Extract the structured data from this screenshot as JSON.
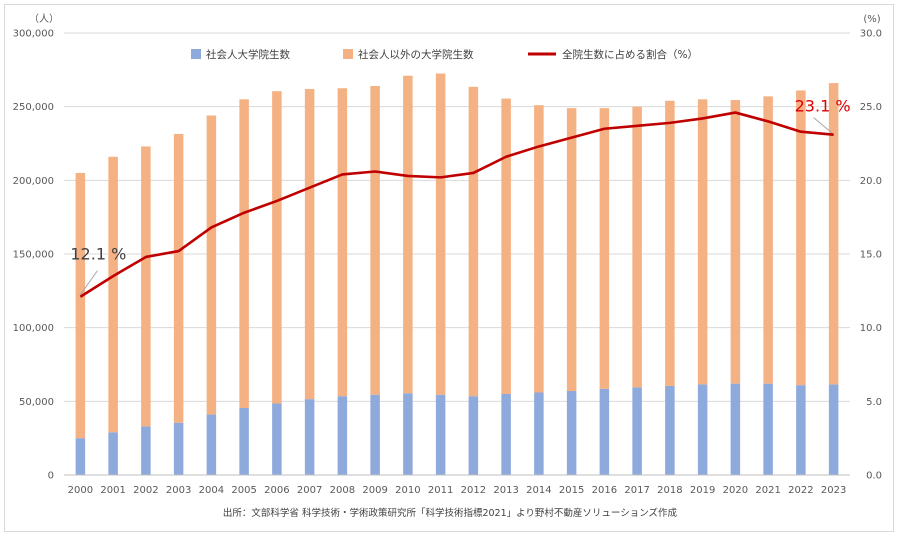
{
  "chart_data": {
    "type": "bar",
    "stacked": true,
    "categories": [
      "2000",
      "2001",
      "2002",
      "2003",
      "2004",
      "2005",
      "2006",
      "2007",
      "2008",
      "2009",
      "2010",
      "2011",
      "2012",
      "2013",
      "2014",
      "2015",
      "2016",
      "2017",
      "2018",
      "2019",
      "2020",
      "2021",
      "2022",
      "2023"
    ],
    "y_left": {
      "unit_label": "（人）",
      "min": 0,
      "max": 300000,
      "step": 50000,
      "tick_labels": [
        "0",
        "50,000",
        "100,000",
        "150,000",
        "200,000",
        "250,000",
        "300,000"
      ]
    },
    "y_right": {
      "unit_label": "(%)",
      "min": 0,
      "max": 30,
      "step": 5,
      "tick_labels": [
        "0.0",
        "5.0",
        "10.0",
        "15.0",
        "20.0",
        "25.0",
        "30.0"
      ]
    },
    "series": [
      {
        "name": "社会人大学院生数",
        "kind": "bar",
        "axis": "left",
        "color": "#8EA9DB",
        "values": [
          25000,
          29000,
          33000,
          35500,
          41000,
          45500,
          48500,
          51500,
          53500,
          54500,
          55500,
          54500,
          53500,
          55000,
          56000,
          57000,
          58500,
          59500,
          60500,
          61500,
          62000,
          62000,
          61000,
          61500
        ]
      },
      {
        "name": "社会人以外の大学院生数",
        "kind": "bar",
        "axis": "left",
        "color": "#F4B183",
        "values": [
          180000,
          187000,
          190000,
          196000,
          203000,
          209500,
          212000,
          210500,
          209000,
          209500,
          215500,
          218000,
          210000,
          200500,
          195000,
          192000,
          190500,
          190500,
          193500,
          193500,
          192500,
          195000,
          200000,
          204500
        ]
      },
      {
        "name": "全院生数に占める割合（%）",
        "kind": "line",
        "axis": "right",
        "color": "#C00000",
        "values": [
          12.1,
          13.5,
          14.8,
          15.2,
          16.8,
          17.8,
          18.6,
          19.5,
          20.4,
          20.6,
          20.3,
          20.2,
          20.5,
          21.6,
          22.3,
          22.9,
          23.5,
          23.7,
          23.9,
          24.2,
          24.6,
          24.0,
          23.3,
          23.1
        ]
      }
    ],
    "annotations": [
      {
        "text": "12.1 %",
        "category": "2000",
        "color": "#404040"
      },
      {
        "text": "23.1 %",
        "category": "2023",
        "color": "#E00000"
      }
    ],
    "legend_position": "top",
    "grid": true,
    "source": "出所：文部科学省 科学技術・学術政策研究所「科学技術指標2021」より野村不動産ソリューションズ作成"
  }
}
